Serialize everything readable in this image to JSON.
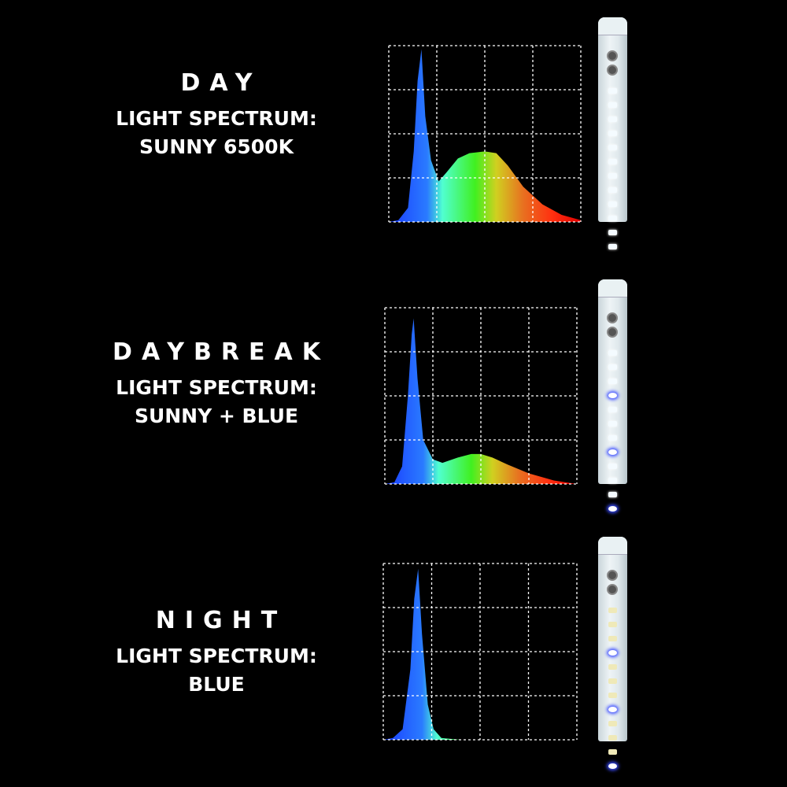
{
  "panels": [
    {
      "mode": "DAY",
      "spectrum_label": "LIGHT SPECTRUM:",
      "spectrum_value": "SUNNY 6500K",
      "leds": [
        "white",
        "white",
        "white",
        "white",
        "white",
        "white",
        "white",
        "white",
        "white",
        "white",
        "white",
        "white"
      ]
    },
    {
      "mode": "DAYBREAK",
      "spectrum_label": "LIGHT SPECTRUM:",
      "spectrum_value": "SUNNY + BLUE",
      "leds": [
        "white",
        "white",
        "white",
        "blue",
        "white",
        "white",
        "white",
        "blue",
        "white",
        "white",
        "white",
        "blue"
      ]
    },
    {
      "mode": "NIGHT",
      "spectrum_label": "LIGHT SPECTRUM:",
      "spectrum_value": "BLUE",
      "leds": [
        "warm",
        "warm",
        "warm",
        "blue",
        "warm",
        "warm",
        "warm",
        "blue",
        "warm",
        "warm",
        "warm",
        "blue"
      ]
    }
  ],
  "colors": {
    "background": "#000000",
    "text": "#ffffff",
    "grid": "#ffffff",
    "blue_led": "#3a4cff"
  },
  "chart_data": [
    {
      "type": "area",
      "grid": "4x4 dashed",
      "x": [
        0,
        0.05,
        0.1,
        0.13,
        0.15,
        0.17,
        0.19,
        0.22,
        0.26,
        0.3,
        0.36,
        0.42,
        0.5,
        0.56,
        0.62,
        0.7,
        0.8,
        0.9,
        1
      ],
      "values": [
        0,
        0.01,
        0.08,
        0.4,
        0.8,
        0.98,
        0.6,
        0.35,
        0.23,
        0.28,
        0.36,
        0.39,
        0.4,
        0.39,
        0.32,
        0.2,
        0.1,
        0.04,
        0.01
      ]
    },
    {
      "type": "area",
      "grid": "4x4 dashed",
      "x": [
        0,
        0.05,
        0.09,
        0.12,
        0.14,
        0.15,
        0.17,
        0.2,
        0.25,
        0.3,
        0.38,
        0.45,
        0.5,
        0.56,
        0.64,
        0.75,
        0.88,
        1
      ],
      "values": [
        0,
        0.01,
        0.1,
        0.5,
        0.85,
        0.94,
        0.6,
        0.25,
        0.14,
        0.12,
        0.15,
        0.17,
        0.17,
        0.15,
        0.11,
        0.06,
        0.02,
        0.0
      ]
    },
    {
      "type": "area",
      "grid": "4x4 dashed",
      "x": [
        0,
        0.05,
        0.1,
        0.14,
        0.16,
        0.18,
        0.2,
        0.23,
        0.26,
        0.3,
        0.4,
        1
      ],
      "values": [
        0,
        0.01,
        0.06,
        0.4,
        0.8,
        0.97,
        0.6,
        0.2,
        0.06,
        0.01,
        0.0,
        0.0
      ]
    }
  ]
}
